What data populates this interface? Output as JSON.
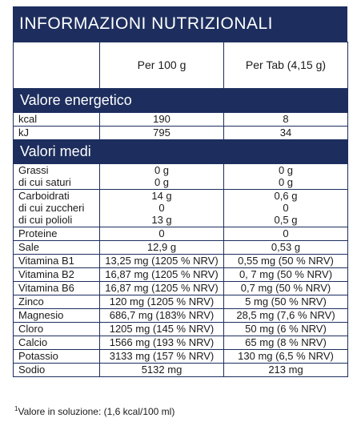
{
  "title": "INFORMAZIONI NUTRIZIONALI",
  "header": {
    "col1": "",
    "col2": "Per 100 g",
    "col3": "Per Tab (4,15 g)"
  },
  "energy": {
    "section": "Valore energetico",
    "rows": [
      {
        "label": "kcal",
        "per100": "190",
        "pertab": "8"
      },
      {
        "label": "kJ",
        "per100": "795",
        "pertab": "34"
      }
    ]
  },
  "medi": {
    "section": "Valori medi",
    "fat": {
      "labels": [
        "Grassi",
        "di cui saturi"
      ],
      "per100": [
        "0 g",
        "0 g"
      ],
      "pertab": [
        "0 g",
        "0 g"
      ]
    },
    "carbs": {
      "labels": [
        "Carboidrati",
        "di cui zuccheri",
        "di cui polioli"
      ],
      "per100": [
        "14 g",
        "0",
        "13 g"
      ],
      "pertab": [
        "0,6 g",
        "0",
        "0,5 g"
      ]
    },
    "rows": [
      {
        "label": "Proteine",
        "per100": "0",
        "pertab": "0"
      },
      {
        "label": "Sale",
        "per100": "12,9 g",
        "pertab": "0,53 g"
      },
      {
        "label": "Vitamina B1",
        "per100": "13,25 mg (1205 % NRV)",
        "pertab": "0,55 mg (50 % NRV)"
      },
      {
        "label": "Vitamina B2",
        "per100": "16,87 mg (1205 % NRV)",
        "pertab": "0, 7 mg (50 % NRV)"
      },
      {
        "label": "Vitamina B6",
        "per100": "16,87 mg (1205 % NRV)",
        "pertab": "0,7 mg (50 % NRV)"
      },
      {
        "label": "Zinco",
        "per100": "120 mg (1205 % NRV)",
        "pertab": "5 mg (50 % NRV)"
      },
      {
        "label": "Magnesio",
        "per100": "686,7 mg (183% NRV)",
        "pertab": "28,5 mg (7,6 % NRV)"
      },
      {
        "label": "Cloro",
        "per100": "1205 mg (145 % NRV)",
        "pertab": "50 mg (6 % NRV)"
      },
      {
        "label": "Calcio",
        "per100": "1566 mg (193 % NRV)",
        "pertab": "65 mg (8 % NRV)"
      },
      {
        "label": "Potassio",
        "per100": "3133 mg (157 % NRV)",
        "pertab": "130 mg (6,5 % NRV)"
      },
      {
        "label": "Sodio",
        "per100": "5132 mg",
        "pertab": "213 mg"
      }
    ]
  },
  "footnote": {
    "mark": "1",
    "text": "Valore in soluzione: (1,6 kcal/100 ml)"
  }
}
